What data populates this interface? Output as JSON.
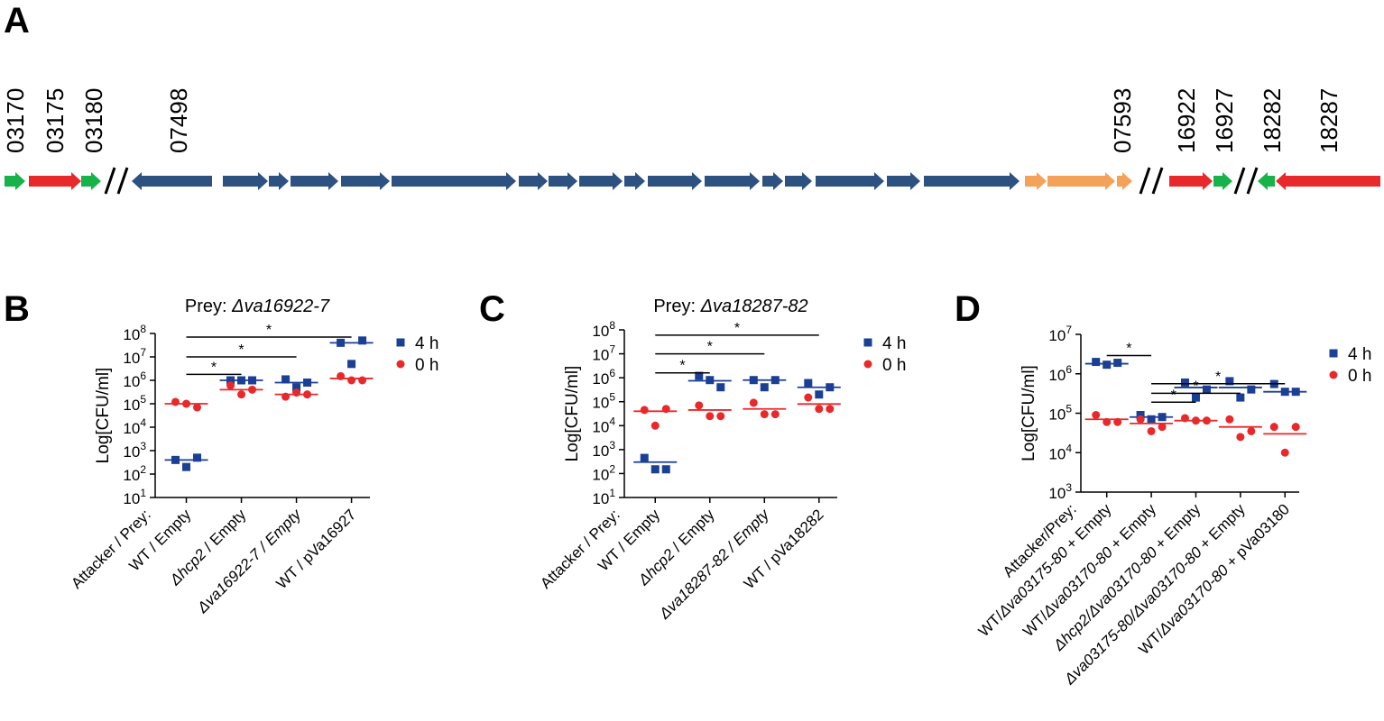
{
  "panel_letters": [
    "A",
    "B",
    "C",
    "D"
  ],
  "gene_labels": [
    "03170",
    "03175",
    "03180",
    "07498",
    "07593",
    "16922",
    "16927",
    "18282",
    "18287"
  ],
  "colors": {
    "blue": "#1a3f95",
    "red": "#e8292b",
    "green": "#17b24a",
    "navy_gene": "#2d5181",
    "orange_gene": "#f4a259",
    "black": "#000000"
  },
  "chart_data": [
    {
      "panel": "B",
      "type": "scatter",
      "title_prefix": "Prey: ",
      "title_italic": "Δva16922-7",
      "ylabel": "Log[CFU/ml]",
      "yscale": "log",
      "ylim": [
        10,
        100000000
      ],
      "yticks": [
        {
          "value": 10,
          "base": "10",
          "exp": "1"
        },
        {
          "value": 100,
          "base": "10",
          "exp": "2"
        },
        {
          "value": 1000,
          "base": "10",
          "exp": "3"
        },
        {
          "value": 10000,
          "base": "10",
          "exp": "4"
        },
        {
          "value": 100000,
          "base": "10",
          "exp": "5"
        },
        {
          "value": 1000000,
          "base": "10",
          "exp": "6"
        },
        {
          "value": 10000000,
          "base": "10",
          "exp": "7"
        },
        {
          "value": 100000000,
          "base": "10",
          "exp": "8"
        }
      ],
      "categories": [
        {
          "parts": [
            {
              "t": "Attacker / Prey:",
              "i": false
            }
          ]
        },
        {
          "parts": [
            {
              "t": "WT / Empty",
              "i": false
            }
          ]
        },
        {
          "parts": [
            {
              "t": "Δhcp2",
              "i": true
            },
            {
              "t": " / Empty",
              "i": false
            }
          ]
        },
        {
          "parts": [
            {
              "t": "Δva16922-7 / Empty",
              "i": true
            }
          ]
        },
        {
          "parts": [
            {
              "t": "WT / pVa16927",
              "i": false
            }
          ]
        }
      ],
      "series": [
        {
          "name": "4 h",
          "marker": "square",
          "color": "#1a3f95",
          "points": [
            [
              1,
              400
            ],
            [
              1,
              500
            ],
            [
              1,
              200
            ],
            [
              2,
              1000000
            ],
            [
              2,
              1000000
            ],
            [
              2,
              1000000
            ],
            [
              3,
              1100000
            ],
            [
              3,
              800000
            ],
            [
              3,
              500000
            ],
            [
              4,
              40000000
            ],
            [
              4,
              50000000
            ],
            [
              4,
              5000000
            ]
          ],
          "means": [
            [
              1,
              400
            ],
            [
              2,
              1000000
            ],
            [
              3,
              800000
            ],
            [
              4,
              40000000
            ]
          ]
        },
        {
          "name": "0 h",
          "marker": "circle",
          "color": "#e8292b",
          "points": [
            [
              1,
              120000
            ],
            [
              1,
              70000
            ],
            [
              1,
              100000
            ],
            [
              2,
              600000
            ],
            [
              2,
              400000
            ],
            [
              2,
              250000
            ],
            [
              3,
              200000
            ],
            [
              3,
              250000
            ],
            [
              3,
              300000
            ],
            [
              4,
              1500000
            ],
            [
              4,
              1000000
            ],
            [
              4,
              1000000
            ]
          ],
          "means": [
            [
              1,
              100000
            ],
            [
              2,
              400000
            ],
            [
              3,
              250000
            ],
            [
              4,
              1200000
            ]
          ]
        }
      ],
      "significance": [
        {
          "from": 1,
          "to": 2,
          "value": 1800000,
          "label": "*"
        },
        {
          "from": 1,
          "to": 3,
          "value": 10000000,
          "label": "*"
        },
        {
          "from": 1,
          "to": 4,
          "value": 70000000,
          "label": "*"
        }
      ],
      "legend": [
        "4 h",
        "0 h"
      ],
      "legend_position": "top-right"
    },
    {
      "panel": "C",
      "type": "scatter",
      "title_prefix": "Prey: ",
      "title_italic": "Δva18287-82",
      "ylabel": "Log[CFU/ml]",
      "yscale": "log",
      "ylim": [
        10,
        100000000
      ],
      "yticks": [
        {
          "value": 10,
          "base": "10",
          "exp": "1"
        },
        {
          "value": 100,
          "base": "10",
          "exp": "2"
        },
        {
          "value": 1000,
          "base": "10",
          "exp": "3"
        },
        {
          "value": 10000,
          "base": "10",
          "exp": "4"
        },
        {
          "value": 100000,
          "base": "10",
          "exp": "5"
        },
        {
          "value": 1000000,
          "base": "10",
          "exp": "6"
        },
        {
          "value": 10000000,
          "base": "10",
          "exp": "7"
        },
        {
          "value": 100000000,
          "base": "10",
          "exp": "8"
        }
      ],
      "categories": [
        {
          "parts": [
            {
              "t": "Attacker / Prey:",
              "i": false
            }
          ]
        },
        {
          "parts": [
            {
              "t": "WT / Empty",
              "i": false
            }
          ]
        },
        {
          "parts": [
            {
              "t": "Δhcp2",
              "i": true
            },
            {
              "t": " / Empty",
              "i": false
            }
          ]
        },
        {
          "parts": [
            {
              "t": "Δva18287-82 / Empty",
              "i": true
            }
          ]
        },
        {
          "parts": [
            {
              "t": "WT / pVa18282",
              "i": false
            }
          ]
        }
      ],
      "series": [
        {
          "name": "4 h",
          "marker": "square",
          "color": "#1a3f95",
          "points": [
            [
              1,
              450
            ],
            [
              1,
              150
            ],
            [
              1,
              150
            ],
            [
              2,
              1200000
            ],
            [
              2,
              400000
            ],
            [
              2,
              800000
            ],
            [
              3,
              800000
            ],
            [
              3,
              800000
            ],
            [
              3,
              400000
            ],
            [
              4,
              600000
            ],
            [
              4,
              400000
            ],
            [
              4,
              200000
            ]
          ],
          "means": [
            [
              1,
              300
            ],
            [
              2,
              750000
            ],
            [
              3,
              800000
            ],
            [
              4,
              400000
            ]
          ]
        },
        {
          "name": "0 h",
          "marker": "circle",
          "color": "#e8292b",
          "points": [
            [
              1,
              45000
            ],
            [
              1,
              50000
            ],
            [
              1,
              10000
            ],
            [
              2,
              70000
            ],
            [
              2,
              25000
            ],
            [
              2,
              25000
            ],
            [
              3,
              90000
            ],
            [
              3,
              30000
            ],
            [
              3,
              30000
            ],
            [
              4,
              150000
            ],
            [
              4,
              50000
            ],
            [
              4,
              50000
            ]
          ],
          "means": [
            [
              1,
              40000
            ],
            [
              2,
              45000
            ],
            [
              3,
              50000
            ],
            [
              4,
              80000
            ]
          ]
        }
      ],
      "significance": [
        {
          "from": 1,
          "to": 2,
          "value": 1600000,
          "label": "*"
        },
        {
          "from": 1,
          "to": 3,
          "value": 10000000,
          "label": "*"
        },
        {
          "from": 1,
          "to": 4,
          "value": 60000000,
          "label": "*"
        }
      ],
      "legend": [
        "4 h",
        "0 h"
      ],
      "legend_position": "top-right"
    },
    {
      "panel": "D",
      "type": "scatter",
      "title_prefix": "",
      "title_italic": "",
      "ylabel": "Log[CFU/ml]",
      "yscale": "log",
      "ylim": [
        1000,
        10000000
      ],
      "yticks": [
        {
          "value": 1000,
          "base": "10",
          "exp": "3"
        },
        {
          "value": 10000,
          "base": "10",
          "exp": "4"
        },
        {
          "value": 100000,
          "base": "10",
          "exp": "5"
        },
        {
          "value": 1000000,
          "base": "10",
          "exp": "6"
        },
        {
          "value": 10000000,
          "base": "10",
          "exp": "7"
        }
      ],
      "categories": [
        {
          "parts": [
            {
              "t": "Attacker/Prey:",
              "i": false
            }
          ]
        },
        {
          "parts": [
            {
              "t": "WT/",
              "i": false
            },
            {
              "t": "Δva03175-80",
              "i": true
            },
            {
              "t": " + Empty",
              "i": false
            }
          ]
        },
        {
          "parts": [
            {
              "t": "WT/",
              "i": false
            },
            {
              "t": "Δva03170-80",
              "i": true
            },
            {
              "t": " + Empty",
              "i": false
            }
          ]
        },
        {
          "parts": [
            {
              "t": "Δhcp2/Δva03170-80",
              "i": true
            },
            {
              "t": " + Empty",
              "i": false
            }
          ]
        },
        {
          "parts": [
            {
              "t": "Δva03175-80/Δva03170-80",
              "i": true
            },
            {
              "t": " + Empty",
              "i": false
            }
          ]
        },
        {
          "parts": [
            {
              "t": "WT/",
              "i": false
            },
            {
              "t": "Δva03170-80",
              "i": true
            },
            {
              "t": " + pVa03180",
              "i": false
            }
          ]
        }
      ],
      "series": [
        {
          "name": "4 h",
          "marker": "square",
          "color": "#1a3f95",
          "points": [
            [
              1,
              2000000
            ],
            [
              1,
              1900000
            ],
            [
              1,
              1700000
            ],
            [
              2,
              90000
            ],
            [
              2,
              80000
            ],
            [
              2,
              70000
            ],
            [
              3,
              600000
            ],
            [
              3,
              400000
            ],
            [
              3,
              250000
            ],
            [
              4,
              650000
            ],
            [
              4,
              400000
            ],
            [
              4,
              250000
            ],
            [
              5,
              550000
            ],
            [
              5,
              350000
            ],
            [
              5,
              350000
            ]
          ],
          "means": [
            [
              1,
              1800000
            ],
            [
              2,
              80000
            ],
            [
              3,
              450000
            ],
            [
              4,
              450000
            ],
            [
              5,
              350000
            ]
          ]
        },
        {
          "name": "0 h",
          "marker": "circle",
          "color": "#e8292b",
          "points": [
            [
              1,
              90000
            ],
            [
              1,
              60000
            ],
            [
              1,
              60000
            ],
            [
              2,
              70000
            ],
            [
              2,
              45000
            ],
            [
              2,
              35000
            ],
            [
              3,
              75000
            ],
            [
              3,
              65000
            ],
            [
              3,
              65000
            ],
            [
              4,
              70000
            ],
            [
              4,
              35000
            ],
            [
              4,
              25000
            ],
            [
              5,
              45000
            ],
            [
              5,
              45000
            ],
            [
              5,
              10000
            ]
          ],
          "means": [
            [
              1,
              70000
            ],
            [
              2,
              55000
            ],
            [
              3,
              65000
            ],
            [
              4,
              45000
            ],
            [
              5,
              30000
            ]
          ]
        }
      ],
      "significance": [
        {
          "from": 1,
          "to": 2,
          "value": 2900000,
          "label": "*"
        },
        {
          "from": 2,
          "to": 3,
          "value": 190000,
          "label": "*"
        },
        {
          "from": 2,
          "to": 4,
          "value": 320000,
          "label": "*"
        },
        {
          "from": 2,
          "to": 5,
          "value": 560000,
          "label": "*"
        }
      ],
      "legend": [
        "4 h",
        "0 h"
      ],
      "legend_position": "top-right"
    }
  ]
}
